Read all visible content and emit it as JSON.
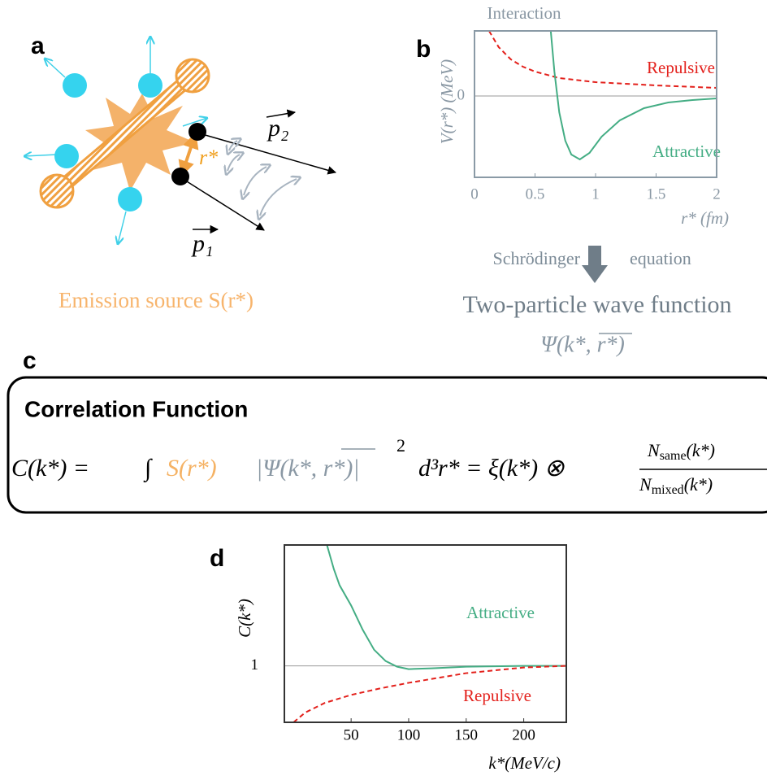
{
  "panel_labels": {
    "a": "a",
    "b": "b",
    "c": "c",
    "d": "d"
  },
  "diagram": {
    "p2": "p₂",
    "p1": "p₁",
    "r_star": "r*",
    "source_label": "Emission source S(r*)"
  },
  "transition": {
    "left": "Schrödinger",
    "right": "equation",
    "result": "Two-particle wave function",
    "symbol": "Ψ(k*, r*)"
  },
  "formula": {
    "title": "Correlation Function",
    "lhs": "C(k*) =",
    "integral": "∫",
    "source": "S(r*)",
    "psi": "|Ψ(k*, r*)|",
    "power": "2",
    "rest": "d³r* = ξ(k*) ⊗",
    "numerator": {
      "base": "N",
      "sub": "same",
      "arg": "(k*)"
    },
    "denominator": {
      "base": "N",
      "sub": "mixed",
      "arg": "(k*)"
    }
  },
  "chart_data": [
    {
      "type": "line",
      "title": "Interaction",
      "x_label": "r* (fm)",
      "y_label": "V(r*) (MeV)",
      "xlim": [
        0,
        2
      ],
      "xticks": [
        0,
        0.5,
        1,
        1.5,
        2
      ],
      "ylim": [
        -1,
        0.8
      ],
      "yticks": [
        0
      ],
      "grid": true,
      "series": [
        {
          "name": "Repulsive",
          "color": "#e3201b",
          "dashed": true,
          "x": [
            0.12,
            0.2,
            0.3,
            0.4,
            0.5,
            0.7,
            1.0,
            1.5,
            2.0
          ],
          "values": [
            0.8,
            0.6,
            0.45,
            0.36,
            0.3,
            0.22,
            0.17,
            0.13,
            0.1
          ]
        },
        {
          "name": "Attractive",
          "color": "#44ad84",
          "dashed": false,
          "x": [
            0.63,
            0.66,
            0.7,
            0.75,
            0.8,
            0.87,
            0.95,
            1.05,
            1.2,
            1.4,
            1.6,
            1.8,
            2.0
          ],
          "values": [
            0.8,
            0.3,
            -0.2,
            -0.55,
            -0.72,
            -0.78,
            -0.7,
            -0.5,
            -0.3,
            -0.15,
            -0.08,
            -0.05,
            -0.03
          ]
        }
      ]
    },
    {
      "type": "line",
      "x_label": "k*(MeV/c)",
      "y_label": "C(k*)",
      "xlim": [
        -8,
        237
      ],
      "xticks": [
        50,
        100,
        150,
        200
      ],
      "ylim": [
        0.3,
        2.5
      ],
      "yticks": [
        1
      ],
      "grid": true,
      "series": [
        {
          "name": "Attractive",
          "color": "#44ad84",
          "dashed": false,
          "x": [
            29,
            35,
            40,
            50,
            60,
            70,
            80,
            90,
            100,
            120,
            150,
            200,
            237
          ],
          "values": [
            2.5,
            2.2,
            2.0,
            1.75,
            1.45,
            1.2,
            1.06,
            0.99,
            0.96,
            0.97,
            0.99,
            1.0,
            1.0
          ]
        },
        {
          "name": "Repulsive",
          "color": "#e3201b",
          "dashed": true,
          "x": [
            0,
            10,
            27,
            50,
            75,
            100,
            150,
            200,
            237
          ],
          "values": [
            0.3,
            0.42,
            0.54,
            0.64,
            0.72,
            0.79,
            0.91,
            0.98,
            1.0
          ]
        }
      ]
    }
  ]
}
